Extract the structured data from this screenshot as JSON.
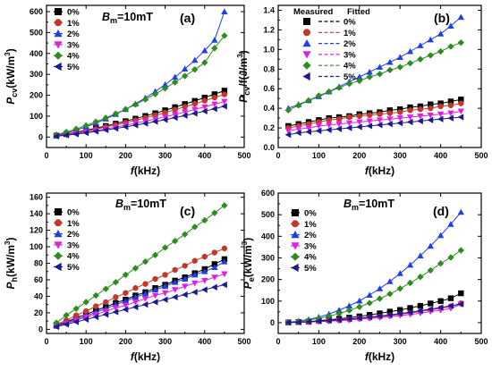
{
  "chart_data": [
    {
      "type": "line",
      "panel": "(a)",
      "annotation": "Bm=10mT",
      "xlabel": "f(kHz)",
      "ylabel": "Pcv(kW/m3)",
      "xlim": [
        0,
        500
      ],
      "ylim": [
        -50,
        630
      ],
      "xticks": [
        0,
        100,
        200,
        300,
        400,
        500
      ],
      "yticks": [
        0,
        100,
        200,
        300,
        400,
        500,
        600
      ],
      "legend_placement": "top-left",
      "x": [
        25,
        50,
        75,
        100,
        125,
        150,
        175,
        200,
        225,
        250,
        275,
        300,
        325,
        350,
        375,
        400,
        425,
        450
      ],
      "series": [
        {
          "name": "0%",
          "color": "#000000",
          "marker": "square",
          "values": [
            7,
            14,
            23,
            32,
            42,
            53,
            64,
            76,
            88,
            101,
            114,
            128,
            143,
            158,
            173,
            189,
            205,
            222
          ]
        },
        {
          "name": "1%",
          "color": "#c0392b",
          "marker": "circle",
          "values": [
            6,
            13,
            21,
            29,
            38,
            48,
            58,
            69,
            80,
            92,
            104,
            117,
            131,
            145,
            159,
            174,
            189,
            204
          ]
        },
        {
          "name": "2%",
          "color": "#1f3fe6",
          "marker": "triangle-up",
          "values": [
            9,
            20,
            33,
            49,
            67,
            87,
            109,
            133,
            159,
            187,
            218,
            251,
            287,
            326,
            368,
            414,
            464,
            600
          ]
        },
        {
          "name": "3%",
          "color": "#e020e0",
          "marker": "triangle-down",
          "values": [
            5,
            10,
            17,
            24,
            31,
            39,
            48,
            57,
            66,
            76,
            86,
            97,
            108,
            120,
            132,
            144,
            157,
            170
          ]
        },
        {
          "name": "4%",
          "color": "#2e8b1f",
          "marker": "diamond",
          "values": [
            11,
            24,
            39,
            55,
            73,
            92,
            112,
            133,
            156,
            180,
            206,
            233,
            262,
            292,
            323,
            356,
            425,
            485
          ]
        },
        {
          "name": "5%",
          "color": "#1a1a8c",
          "marker": "triangle-left",
          "values": [
            4,
            9,
            14,
            20,
            27,
            34,
            41,
            49,
            57,
            65,
            74,
            83,
            93,
            103,
            113,
            124,
            135,
            147
          ]
        }
      ]
    },
    {
      "type": "line",
      "panel": "(b)",
      "xlabel": "f(kHz)",
      "ylabel": "Pcv/f(J/m3)",
      "xlim": [
        0,
        500
      ],
      "ylim": [
        0,
        1.45
      ],
      "xticks": [
        0,
        100,
        200,
        300,
        400,
        500
      ],
      "yticks": [
        0.0,
        0.2,
        0.4,
        0.6,
        0.8,
        1.0,
        1.2,
        1.4
      ],
      "legend_headers": [
        "Measured",
        "Fitted"
      ],
      "legend_placement": "top-left",
      "x": [
        25,
        50,
        75,
        100,
        125,
        150,
        175,
        200,
        225,
        250,
        275,
        300,
        325,
        350,
        375,
        400,
        425,
        450
      ],
      "series": [
        {
          "name": "0%",
          "color": "#000000",
          "marker": "square",
          "values": [
            0.22,
            0.24,
            0.26,
            0.28,
            0.3,
            0.31,
            0.32,
            0.34,
            0.35,
            0.36,
            0.38,
            0.39,
            0.41,
            0.42,
            0.44,
            0.45,
            0.47,
            0.49
          ]
        },
        {
          "name": "1%",
          "color": "#c0392b",
          "marker": "circle",
          "values": [
            0.2,
            0.22,
            0.24,
            0.26,
            0.28,
            0.29,
            0.31,
            0.32,
            0.33,
            0.34,
            0.35,
            0.36,
            0.38,
            0.39,
            0.4,
            0.42,
            0.43,
            0.45
          ]
        },
        {
          "name": "2%",
          "color": "#1f3fe6",
          "marker": "triangle-up",
          "values": [
            0.4,
            0.44,
            0.48,
            0.52,
            0.57,
            0.62,
            0.67,
            0.72,
            0.77,
            0.82,
            0.87,
            0.92,
            0.98,
            1.04,
            1.1,
            1.16,
            1.24,
            1.33
          ]
        },
        {
          "name": "3%",
          "color": "#e020e0",
          "marker": "triangle-down",
          "values": [
            0.17,
            0.19,
            0.2,
            0.22,
            0.23,
            0.24,
            0.25,
            0.26,
            0.27,
            0.28,
            0.29,
            0.3,
            0.31,
            0.32,
            0.33,
            0.34,
            0.35,
            0.37
          ]
        },
        {
          "name": "4%",
          "color": "#2e8b1f",
          "marker": "diamond",
          "values": [
            0.38,
            0.43,
            0.48,
            0.53,
            0.57,
            0.61,
            0.65,
            0.68,
            0.72,
            0.75,
            0.79,
            0.82,
            0.86,
            0.9,
            0.94,
            0.98,
            1.03,
            1.07
          ]
        },
        {
          "name": "5%",
          "color": "#1a1a8c",
          "marker": "triangle-left",
          "values": [
            0.13,
            0.15,
            0.16,
            0.17,
            0.18,
            0.19,
            0.2,
            0.21,
            0.22,
            0.23,
            0.24,
            0.25,
            0.26,
            0.27,
            0.28,
            0.29,
            0.3,
            0.31
          ]
        }
      ]
    },
    {
      "type": "line",
      "panel": "(c)",
      "annotation": "Bm=10mT",
      "xlabel": "f(kHz)",
      "ylabel": "Ph(kW/m3)",
      "xlim": [
        0,
        500
      ],
      "ylim": [
        -5,
        165
      ],
      "xticks": [
        0,
        100,
        200,
        300,
        400,
        500
      ],
      "yticks": [
        0,
        20,
        40,
        60,
        80,
        100,
        120,
        140,
        160
      ],
      "legend_placement": "top-left",
      "x": [
        25,
        50,
        75,
        100,
        125,
        150,
        175,
        200,
        225,
        250,
        275,
        300,
        325,
        350,
        375,
        400,
        425,
        450
      ],
      "series": [
        {
          "name": "0%",
          "color": "#000000",
          "marker": "square",
          "values": [
            5,
            9,
            14,
            18,
            23,
            27,
            32,
            36,
            41,
            45,
            50,
            54,
            59,
            63,
            68,
            73,
            79,
            85
          ]
        },
        {
          "name": "1%",
          "color": "#c0392b",
          "marker": "circle",
          "values": [
            6,
            11,
            17,
            22,
            28,
            33,
            39,
            44,
            50,
            55,
            61,
            66,
            72,
            77,
            83,
            88,
            93,
            98
          ]
        },
        {
          "name": "2%",
          "color": "#1f3fe6",
          "marker": "triangle-up",
          "values": [
            4,
            8,
            12,
            16,
            21,
            25,
            30,
            34,
            39,
            43,
            48,
            52,
            57,
            61,
            66,
            70,
            75,
            82
          ]
        },
        {
          "name": "3%",
          "color": "#e020e0",
          "marker": "triangle-down",
          "values": [
            4,
            7,
            11,
            15,
            18,
            22,
            26,
            29,
            33,
            37,
            41,
            44,
            48,
            52,
            56,
            59,
            63,
            67
          ]
        },
        {
          "name": "4%",
          "color": "#2e8b1f",
          "marker": "diamond",
          "values": [
            8,
            17,
            25,
            33,
            41,
            49,
            57,
            66,
            74,
            82,
            90,
            99,
            107,
            115,
            124,
            132,
            141,
            150
          ]
        },
        {
          "name": "5%",
          "color": "#1a1a8c",
          "marker": "triangle-left",
          "values": [
            3,
            6,
            9,
            12,
            15,
            18,
            21,
            24,
            27,
            30,
            33,
            36,
            39,
            42,
            45,
            48,
            51,
            54
          ]
        }
      ]
    },
    {
      "type": "line",
      "panel": "(d)",
      "annotation": "Bm=10mT",
      "xlabel": "f(kHz)",
      "ylabel": "Pe(kW/m3)",
      "xlim": [
        0,
        500
      ],
      "ylim": [
        -50,
        600
      ],
      "xticks": [
        0,
        100,
        200,
        300,
        400,
        500
      ],
      "yticks": [
        0,
        100,
        200,
        300,
        400,
        500,
        600
      ],
      "legend_placement": "top-left",
      "x": [
        25,
        50,
        75,
        100,
        125,
        150,
        175,
        200,
        225,
        250,
        275,
        300,
        325,
        350,
        375,
        400,
        425,
        450
      ],
      "series": [
        {
          "name": "0%",
          "color": "#000000",
          "marker": "square",
          "values": [
            1,
            3,
            5,
            9,
            13,
            18,
            23,
            29,
            36,
            43,
            51,
            59,
            68,
            78,
            89,
            100,
            113,
            136
          ]
        },
        {
          "name": "1%",
          "color": "#c0392b",
          "marker": "circle",
          "values": [
            0,
            2,
            3,
            6,
            8,
            11,
            15,
            19,
            23,
            28,
            33,
            39,
            45,
            52,
            59,
            67,
            76,
            90
          ]
        },
        {
          "name": "2%",
          "color": "#1f3fe6",
          "marker": "triangle-up",
          "values": [
            2,
            7,
            15,
            26,
            40,
            58,
            78,
            101,
            128,
            158,
            191,
            228,
            267,
            310,
            355,
            404,
            456,
            512
          ]
        },
        {
          "name": "3%",
          "color": "#e020e0",
          "marker": "triangle-down",
          "values": [
            0,
            2,
            3,
            5,
            7,
            9,
            12,
            16,
            19,
            23,
            28,
            33,
            38,
            44,
            51,
            58,
            66,
            85
          ]
        },
        {
          "name": "4%",
          "color": "#2e8b1f",
          "marker": "diamond",
          "values": [
            2,
            6,
            12,
            20,
            30,
            42,
            57,
            73,
            91,
            111,
            133,
            158,
            184,
            212,
            242,
            274,
            302,
            335
          ]
        },
        {
          "name": "5%",
          "color": "#1a1a8c",
          "marker": "triangle-left",
          "values": [
            1,
            2,
            4,
            7,
            10,
            13,
            17,
            21,
            26,
            31,
            36,
            42,
            48,
            55,
            62,
            70,
            78,
            86
          ]
        }
      ]
    }
  ]
}
